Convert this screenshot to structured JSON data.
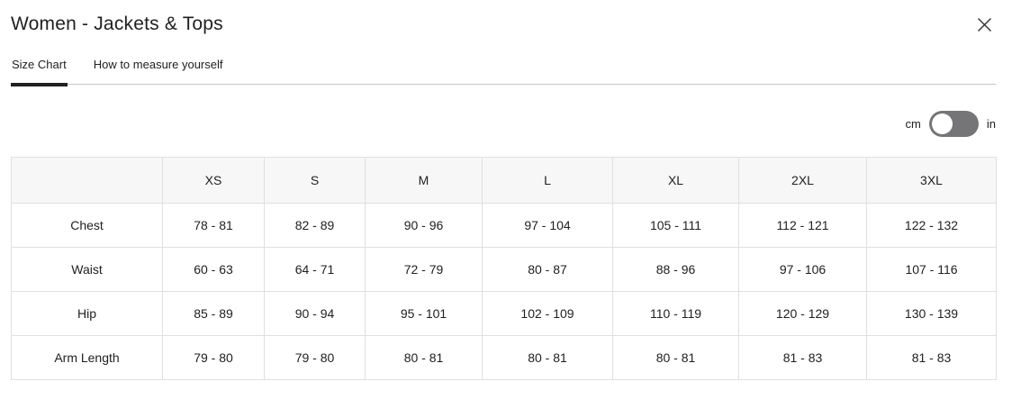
{
  "window": {
    "title": "Women - Jackets & Tops"
  },
  "tabs": [
    {
      "label": "Size Chart",
      "active": true
    },
    {
      "label": "How to measure yourself",
      "active": false
    }
  ],
  "unit_toggle": {
    "left_label": "cm",
    "right_label": "in",
    "selected": "cm"
  },
  "size_table": {
    "columns": [
      "",
      "XS",
      "S",
      "M",
      "L",
      "XL",
      "2XL",
      "3XL"
    ],
    "rows": [
      {
        "label": "Chest",
        "values": [
          "78 - 81",
          "82 - 89",
          "90 - 96",
          "97 - 104",
          "105 - 111",
          "112 - 121",
          "122 - 132"
        ]
      },
      {
        "label": "Waist",
        "values": [
          "60 - 63",
          "64 - 71",
          "72 - 79",
          "80 - 87",
          "88 - 96",
          "97 - 106",
          "107 - 116"
        ]
      },
      {
        "label": "Hip",
        "values": [
          "85 - 89",
          "90 - 94",
          "95 - 101",
          "102 - 109",
          "110 - 119",
          "120 - 129",
          "130 - 139"
        ]
      },
      {
        "label": "Arm Length",
        "values": [
          "79 - 80",
          "79 - 80",
          "80 - 81",
          "80 - 81",
          "80 - 81",
          "81 - 83",
          "81 - 83"
        ]
      }
    ]
  },
  "icons": {
    "close": "close-icon"
  },
  "colors": {
    "text": "#212121",
    "tab_underline": "#212121",
    "divider": "#c6c6c6",
    "table_border": "#e0e0e0",
    "table_header_bg": "#f7f7f7",
    "toggle_bg": "#757578",
    "toggle_knob": "#ffffff"
  }
}
